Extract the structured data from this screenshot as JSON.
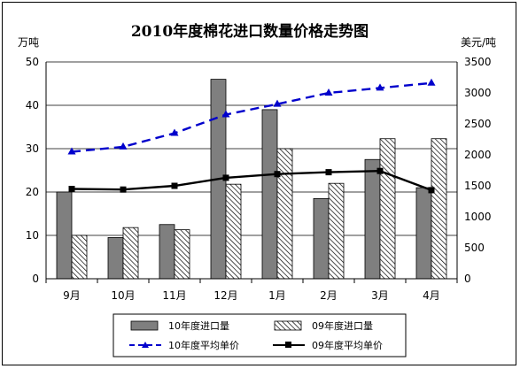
{
  "chart_data": {
    "type": "bar",
    "title": "2010年度棉花进口数量价格走势图",
    "left_unit": "万吨",
    "right_unit": "美元/吨",
    "categories": [
      "9月",
      "10月",
      "11月",
      "12月",
      "1月",
      "2月",
      "3月",
      "4月"
    ],
    "ylim_left": [
      0,
      50
    ],
    "yticks_left": [
      "0",
      "10",
      "20",
      "30",
      "40",
      "50"
    ],
    "ylim_right": [
      0,
      3500
    ],
    "yticks_right": [
      "0",
      "500",
      "1000",
      "1500",
      "2000",
      "2500",
      "3000",
      "3500"
    ],
    "series": [
      {
        "name": "10年度进口量",
        "kind": "bar",
        "axis": "left",
        "color": "#7f7f7f",
        "values": [
          20,
          9.5,
          12.5,
          46,
          39,
          18.5,
          27.5,
          21
        ]
      },
      {
        "name": "09年度进口量",
        "kind": "bar",
        "axis": "left",
        "pattern": "hatch",
        "values": [
          10,
          11.8,
          11.3,
          21.8,
          30,
          22,
          32.3,
          32.3
        ]
      },
      {
        "name": "10年度平均单价",
        "kind": "line",
        "axis": "right",
        "color": "#0000cc",
        "dash": true,
        "marker": "triangle",
        "values": [
          2050,
          2130,
          2350,
          2650,
          2820,
          3000,
          3080,
          3160
        ]
      },
      {
        "name": "09年度平均单价",
        "kind": "line",
        "axis": "right",
        "color": "#000000",
        "dash": false,
        "marker": "square",
        "values": [
          1450,
          1440,
          1500,
          1630,
          1690,
          1720,
          1740,
          1430
        ]
      }
    ],
    "grid": true,
    "legend_position": "bottom"
  }
}
